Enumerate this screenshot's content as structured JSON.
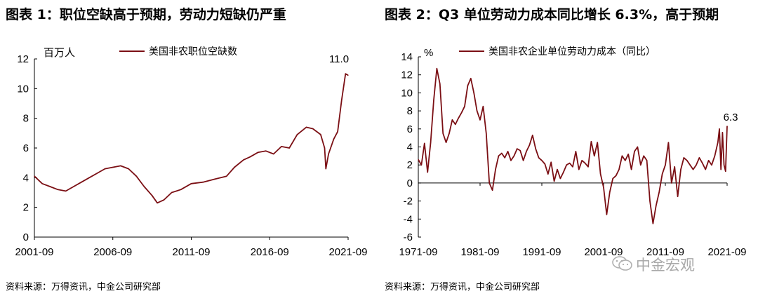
{
  "titles": {
    "left": "图表 1：职位空缺高于预期，劳动力短缺仍严重",
    "right": "图表 2：Q3 单位劳动力成本同比增长 6.3%，高于预期"
  },
  "sources": {
    "left": "资料来源：万得资讯，中金公司研究部",
    "right": "资料来源：万得资讯，中金公司研究部"
  },
  "watermark": "中金宏观",
  "colors": {
    "series": "#7b0f14"
  },
  "chart_data": [
    {
      "type": "line",
      "title": "图表 1：职位空缺高于预期，劳动力短缺仍严重",
      "unit_label": "百万人",
      "legend": [
        "美国非农职位空缺数"
      ],
      "legend_placement": "top-center",
      "grid": false,
      "ylim": [
        0,
        12
      ],
      "yticks": [
        "0",
        "2",
        "4",
        "6",
        "8",
        "10",
        "12"
      ],
      "xlim": [
        "2001-09",
        "2021-09"
      ],
      "xticks": [
        "2001-09",
        "2006-09",
        "2011-09",
        "2016-09",
        "2021-09"
      ],
      "annotation": "11.0",
      "series": [
        {
          "name": "美国非农职位空缺数",
          "x": [
            "2001-09",
            "2002-03",
            "2002-09",
            "2003-03",
            "2003-09",
            "2004-03",
            "2004-09",
            "2005-03",
            "2005-09",
            "2006-03",
            "2006-09",
            "2007-03",
            "2007-09",
            "2008-03",
            "2008-09",
            "2009-03",
            "2009-07",
            "2009-12",
            "2010-06",
            "2011-01",
            "2011-09",
            "2012-06",
            "2013-03",
            "2013-12",
            "2014-06",
            "2015-01",
            "2015-06",
            "2015-12",
            "2016-06",
            "2016-12",
            "2017-06",
            "2017-12",
            "2018-06",
            "2019-01",
            "2019-06",
            "2019-12",
            "2020-03",
            "2020-04",
            "2020-06",
            "2020-10",
            "2021-01",
            "2021-04",
            "2021-07",
            "2021-09"
          ],
          "values": [
            4.1,
            3.6,
            3.4,
            3.2,
            3.1,
            3.4,
            3.7,
            4.0,
            4.3,
            4.6,
            4.7,
            4.8,
            4.6,
            4.1,
            3.4,
            2.8,
            2.3,
            2.5,
            3.0,
            3.2,
            3.6,
            3.7,
            3.9,
            4.1,
            4.7,
            5.2,
            5.4,
            5.7,
            5.8,
            5.6,
            6.1,
            6.0,
            6.9,
            7.4,
            7.3,
            6.9,
            6.0,
            4.6,
            5.6,
            6.6,
            7.1,
            9.2,
            11.0,
            10.9
          ]
        }
      ]
    },
    {
      "type": "line",
      "title": "图表 2：Q3 单位劳动力成本同比增长 6.3%，高于预期",
      "unit_label": "%",
      "legend": [
        "美国非农企业单位劳动力成本（同比）"
      ],
      "legend_placement": "top-center",
      "grid": false,
      "ylim": [
        -6,
        14
      ],
      "yticks": [
        "-6",
        "-4",
        "-2",
        "0",
        "2",
        "4",
        "6",
        "8",
        "10",
        "12",
        "14"
      ],
      "xlim": [
        "1971-09",
        "2021-09"
      ],
      "xticks": [
        "1971-09",
        "1981-09",
        "1991-09",
        "2001-09",
        "2011-09",
        "2021-09"
      ],
      "annotation": "6.3",
      "series": [
        {
          "name": "美国非农企业单位劳动力成本（同比）",
          "x": [
            "1971-09",
            "1972-03",
            "1972-09",
            "1973-03",
            "1973-09",
            "1974-03",
            "1974-09",
            "1975-03",
            "1975-09",
            "1976-03",
            "1976-09",
            "1977-03",
            "1977-09",
            "1978-03",
            "1978-09",
            "1979-03",
            "1979-09",
            "1980-03",
            "1980-09",
            "1981-03",
            "1981-09",
            "1982-03",
            "1982-09",
            "1983-03",
            "1983-09",
            "1984-03",
            "1984-09",
            "1985-03",
            "1985-09",
            "1986-03",
            "1986-09",
            "1987-03",
            "1987-09",
            "1988-03",
            "1988-09",
            "1989-03",
            "1989-09",
            "1990-03",
            "1990-09",
            "1991-03",
            "1991-09",
            "1992-03",
            "1992-09",
            "1993-03",
            "1993-09",
            "1994-03",
            "1994-09",
            "1995-03",
            "1995-09",
            "1996-03",
            "1996-09",
            "1997-03",
            "1997-09",
            "1998-03",
            "1998-09",
            "1999-03",
            "1999-09",
            "2000-03",
            "2000-09",
            "2001-03",
            "2001-09",
            "2002-03",
            "2002-09",
            "2003-03",
            "2003-09",
            "2004-03",
            "2004-09",
            "2005-03",
            "2005-09",
            "2006-03",
            "2006-09",
            "2007-03",
            "2007-09",
            "2008-03",
            "2008-09",
            "2009-03",
            "2009-09",
            "2010-03",
            "2010-09",
            "2011-03",
            "2011-09",
            "2012-03",
            "2012-09",
            "2013-03",
            "2013-09",
            "2014-03",
            "2014-09",
            "2015-03",
            "2015-09",
            "2016-03",
            "2016-09",
            "2017-03",
            "2017-09",
            "2018-03",
            "2018-09",
            "2019-03",
            "2019-09",
            "2020-03",
            "2020-06",
            "2020-09",
            "2020-12",
            "2021-03",
            "2021-06",
            "2021-09"
          ],
          "values": [
            2.6,
            2.0,
            4.4,
            1.2,
            4.5,
            9.2,
            12.7,
            11.0,
            5.5,
            4.5,
            5.5,
            7.0,
            6.5,
            7.2,
            7.8,
            8.5,
            10.8,
            11.6,
            10.0,
            8.0,
            7.0,
            8.5,
            5.5,
            0.0,
            -0.8,
            1.5,
            3.0,
            3.3,
            2.8,
            3.5,
            2.5,
            3.0,
            3.8,
            3.6,
            2.5,
            3.5,
            4.2,
            5.3,
            3.8,
            2.8,
            2.5,
            2.1,
            1.0,
            2.3,
            0.2,
            1.5,
            0.5,
            1.2,
            2.0,
            2.2,
            1.8,
            3.5,
            1.5,
            2.5,
            2.2,
            1.8,
            4.6,
            3.0,
            4.5,
            1.0,
            -0.5,
            -3.5,
            -1.0,
            0.5,
            0.8,
            1.5,
            3.0,
            2.5,
            3.2,
            1.5,
            3.5,
            4.0,
            2.0,
            3.0,
            2.5,
            -2.0,
            -4.5,
            -2.5,
            -1.0,
            1.0,
            2.0,
            4.5,
            0.0,
            1.8,
            -1.5,
            1.5,
            2.8,
            2.5,
            2.0,
            1.5,
            2.0,
            2.8,
            2.2,
            1.5,
            2.5,
            2.0,
            3.0,
            4.5,
            6.0,
            1.5,
            5.6,
            2.0,
            1.3,
            6.3
          ]
        }
      ]
    }
  ]
}
